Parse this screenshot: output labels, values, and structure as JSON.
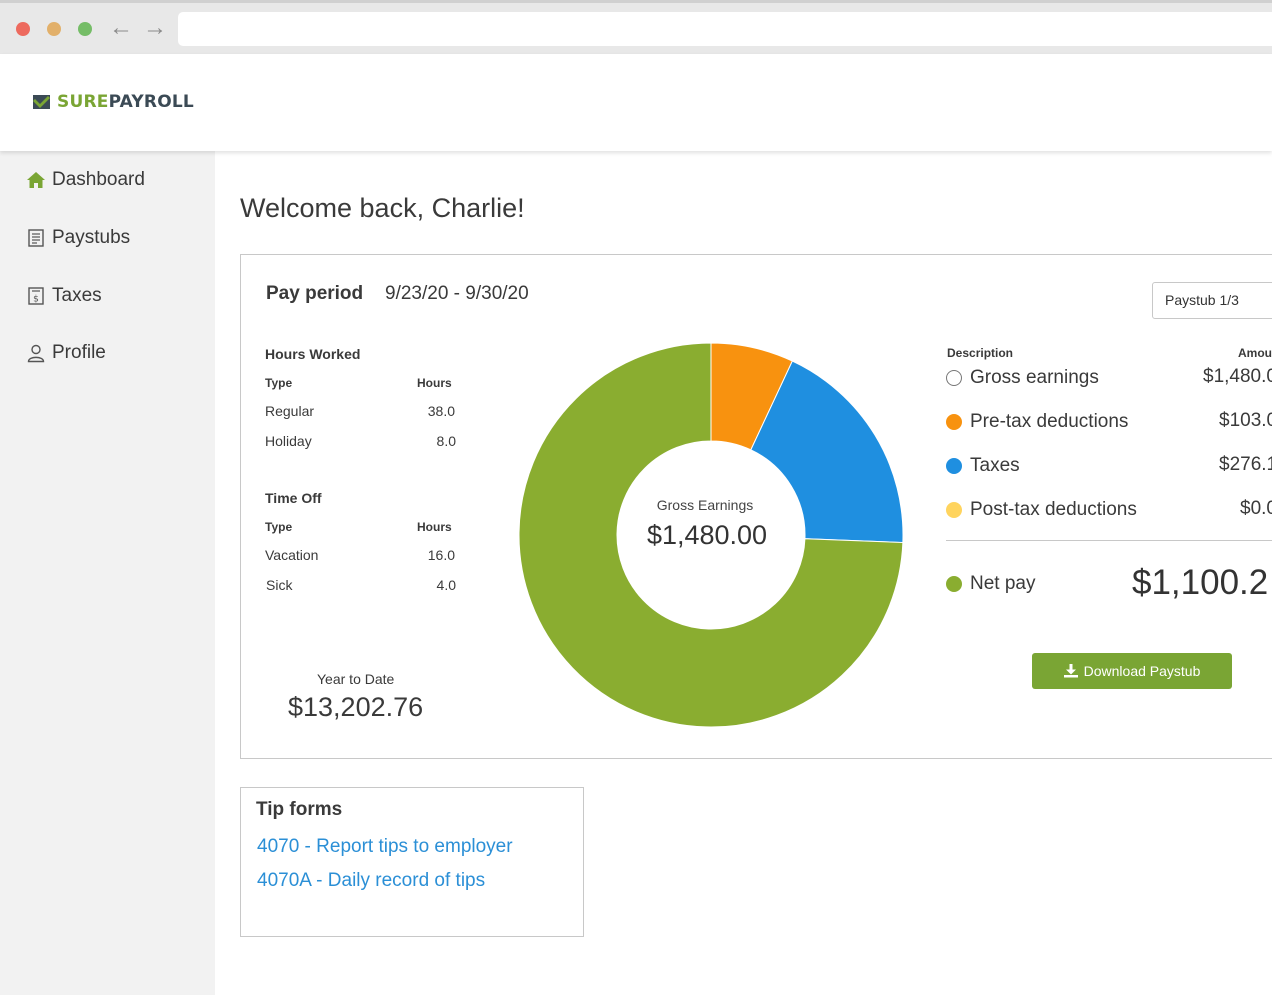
{
  "brand": {
    "logo_sure": "SURE",
    "logo_payroll": "PAYROLL",
    "colors": {
      "green": "#7aa534",
      "dark": "#3b4a55"
    }
  },
  "sidebar": {
    "items": [
      {
        "label": "Dashboard",
        "icon": "home-icon"
      },
      {
        "label": "Paystubs",
        "icon": "paystub-icon"
      },
      {
        "label": "Taxes",
        "icon": "tax-document-icon"
      },
      {
        "label": "Profile",
        "icon": "user-icon"
      }
    ]
  },
  "main": {
    "welcome": "Welcome back, Charlie!"
  },
  "pay_period": {
    "label": "Pay period",
    "range": "9/23/20 - 9/30/20",
    "paystub_selector": "Paystub 1/3"
  },
  "hours_worked": {
    "title": "Hours Worked",
    "col_type": "Type",
    "col_hours": "Hours",
    "rows": [
      {
        "type": "Regular",
        "hours": "38.0"
      },
      {
        "type": "Holiday",
        "hours": "8.0"
      }
    ]
  },
  "time_off": {
    "title": "Time Off",
    "col_type": "Type",
    "col_hours": "Hours",
    "rows": [
      {
        "type": "Vacation",
        "hours": "16.0"
      },
      {
        "type": "Sick",
        "hours": "4.0"
      }
    ]
  },
  "year_to_date": {
    "label": "Year to Date",
    "value": "$13,202.76"
  },
  "donut": {
    "center_label": "Gross Earnings",
    "center_value": "$1,480.00"
  },
  "breakdown": {
    "col_description": "Description",
    "col_amount": "Amou",
    "rows": [
      {
        "label": "Gross earnings",
        "amount": "$1,480.0",
        "color": "#ffffff"
      },
      {
        "label": "Pre-tax deductions",
        "amount": "$103.0",
        "color": "#f8920f"
      },
      {
        "label": "Taxes",
        "amount": "$276.1",
        "color": "#1f8fe0"
      },
      {
        "label": "Post-tax deductions",
        "amount": "$0.0",
        "color": "#ffd45e"
      }
    ],
    "net_label": "Net pay",
    "net_amount": "$1,100.2",
    "net_color": "#8aad30"
  },
  "download_button": "Download Paystub",
  "tip_forms": {
    "title": "Tip forms",
    "links": [
      "4070 - Report tips to employer",
      "4070A - Daily record of tips"
    ]
  },
  "chart_data": {
    "type": "pie",
    "categories": [
      "Pre-tax deductions",
      "Taxes",
      "Net pay"
    ],
    "values": [
      103.0,
      276.1,
      1100.2
    ],
    "colors": [
      "#f8920f",
      "#1f8fe0",
      "#8aad30"
    ],
    "title": "",
    "center_label": "Gross Earnings",
    "center_value": "$1,480.00"
  }
}
